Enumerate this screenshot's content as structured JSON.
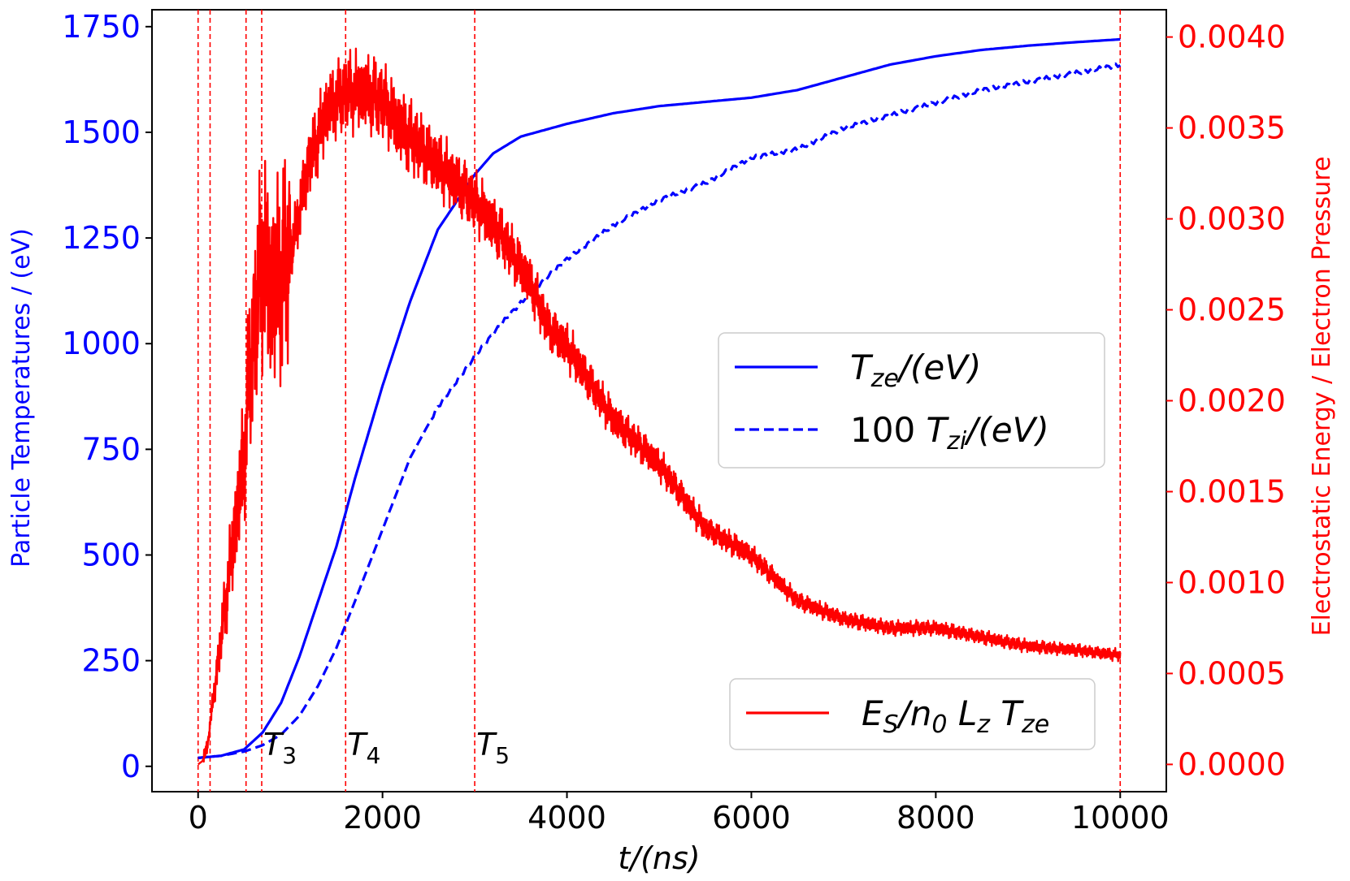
{
  "chart_data": {
    "type": "line",
    "xlabel": "t/(ns)",
    "ylabel_left": "Particle Temperatures / (eV)",
    "ylabel_right": "Electrostatic Energy / Electron Pressure",
    "xlim": [
      -500,
      10500
    ],
    "ylim_left": [
      -60,
      1790
    ],
    "ylim_right": [
      -0.00015,
      0.00415
    ],
    "x_ticks": [
      "0",
      "2000",
      "4000",
      "6000",
      "8000",
      "10000"
    ],
    "y_left_ticks": [
      "0",
      "250",
      "500",
      "750",
      "1000",
      "1250",
      "1500",
      "1750"
    ],
    "y_right_ticks": [
      "0.0000",
      "0.0005",
      "0.0010",
      "0.0015",
      "0.0020",
      "0.0025",
      "0.0030",
      "0.0035",
      "0.0040"
    ],
    "grid": false,
    "colors": {
      "electron": "#0000ff",
      "ion": "#0000ff",
      "field": "#ff0000",
      "markers": "#ff0000"
    },
    "series": [
      {
        "name": "T_ze/(eV)",
        "axis": "left",
        "style": "solid",
        "x": [
          0,
          250,
          500,
          700,
          900,
          1100,
          1300,
          1500,
          1700,
          2000,
          2300,
          2600,
          3000,
          3200,
          3500,
          4000,
          4500,
          5000,
          5500,
          6000,
          6500,
          7000,
          7500,
          8000,
          8500,
          9000,
          9500,
          10000
        ],
        "values": [
          20,
          25,
          40,
          80,
          150,
          260,
          390,
          520,
          680,
          900,
          1100,
          1270,
          1400,
          1450,
          1490,
          1520,
          1545,
          1562,
          1572,
          1582,
          1600,
          1630,
          1660,
          1680,
          1695,
          1705,
          1713,
          1720
        ]
      },
      {
        "name": "100 T_zi/(eV)",
        "axis": "left",
        "style": "dashed",
        "x": [
          0,
          250,
          500,
          700,
          900,
          1100,
          1300,
          1500,
          1700,
          2000,
          2300,
          2600,
          3000,
          3300,
          3600,
          4000,
          4500,
          5000,
          5500,
          6000,
          6500,
          7000,
          7500,
          8000,
          8500,
          9000,
          9500,
          10000
        ],
        "values": [
          20,
          25,
          35,
          50,
          75,
          120,
          190,
          280,
          390,
          560,
          730,
          850,
          970,
          1050,
          1120,
          1200,
          1280,
          1340,
          1380,
          1440,
          1460,
          1510,
          1540,
          1570,
          1600,
          1620,
          1640,
          1660
        ]
      },
      {
        "name": "E_S/n0 Lz T_ze",
        "axis": "right",
        "style": "solid",
        "noisy": true,
        "x": [
          0,
          50,
          100,
          200,
          300,
          400,
          500,
          550,
          650,
          700,
          800,
          1000,
          1200,
          1400,
          1600,
          1800,
          2000,
          2200,
          2500,
          2800,
          3000,
          3300,
          3600,
          3800,
          4000,
          4500,
          5000,
          5500,
          6000,
          6500,
          7000,
          7500,
          8000,
          8500,
          9000,
          9500,
          10000
        ],
        "values": [
          0.0,
          2e-05,
          0.0001,
          0.0005,
          0.0009,
          0.0013,
          0.0017,
          0.0021,
          0.0026,
          0.0028,
          0.0026,
          0.0028,
          0.0033,
          0.0036,
          0.0037,
          0.0037,
          0.00365,
          0.0035,
          0.00335,
          0.0032,
          0.0031,
          0.0029,
          0.00265,
          0.0024,
          0.0023,
          0.0019,
          0.00165,
          0.0013,
          0.00115,
          0.0009,
          0.0008,
          0.00075,
          0.00075,
          0.0007,
          0.00065,
          0.00063,
          0.0006
        ]
      }
    ],
    "vertical_markers": [
      0,
      130,
      520,
      690,
      1600,
      3000,
      10000
    ],
    "marker_labels": [
      {
        "base": "T",
        "sub": "3",
        "x": 690
      },
      {
        "base": "T",
        "sub": "4",
        "x": 1600
      },
      {
        "base": "T",
        "sub": "5",
        "x": 3000
      }
    ],
    "legend_top": {
      "position": "center-right",
      "entries": [
        {
          "style": "solid",
          "color": "#0000ff",
          "base": "T",
          "sub": "ze",
          "tail": "/(eV)",
          "prefix": ""
        },
        {
          "style": "dashed",
          "color": "#0000ff",
          "base": "T",
          "sub": "zi",
          "tail": "/(eV)",
          "prefix": "100 "
        }
      ]
    },
    "legend_bottom": {
      "position": "lower-right",
      "entries": [
        {
          "style": "solid",
          "color": "#ff0000",
          "label": "E_S/n_0 L_z T_ze"
        }
      ]
    }
  }
}
